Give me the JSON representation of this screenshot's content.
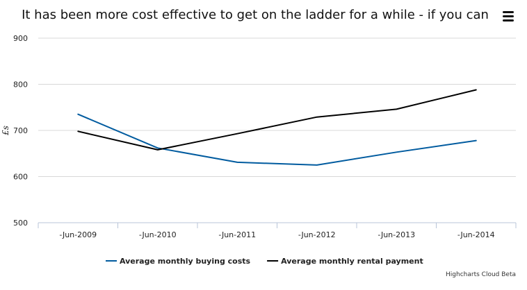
{
  "chart_data": {
    "type": "line",
    "title": "It has been more cost effective to get on the ladder for a while - if you can",
    "ylabel": "£s",
    "xlabel": "",
    "categories": [
      "-Jun-2009",
      "-Jun-2010",
      "-Jun-2011",
      "-Jun-2012",
      "-Jun-2013",
      "-Jun-2014"
    ],
    "ylim": [
      500,
      900
    ],
    "yticks": [
      900,
      800,
      700,
      600,
      500
    ],
    "grid": true,
    "legend_position": "bottom",
    "series": [
      {
        "name": "Average monthly buying costs",
        "color": "#005b9f",
        "values": [
          735,
          662,
          631,
          625,
          653,
          678
        ]
      },
      {
        "name": "Average monthly rental payment",
        "color": "#000000",
        "values": [
          698,
          658,
          693,
          729,
          746,
          788
        ]
      }
    ]
  },
  "credits": "Highcharts Cloud Beta",
  "menu_icon": "hamburger-menu-icon"
}
